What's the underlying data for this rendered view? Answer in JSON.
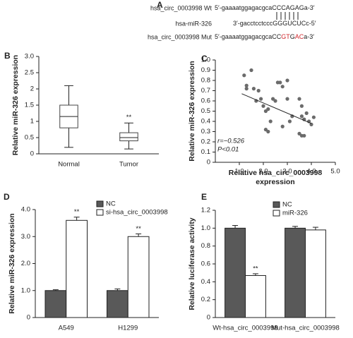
{
  "alignment": {
    "label": "A",
    "rows": [
      {
        "name": "hsa_circ_0003998 Wt",
        "segments": [
          {
            "text": "5′-gaaaatggagacgcaCCCAGAGa-3′",
            "color": "#222222"
          }
        ]
      },
      {
        "name": "hsa-miR-326",
        "segments": [
          {
            "text": "3′-gacctcctcccGGGUCUCc-5′",
            "color": "#222222"
          }
        ]
      },
      {
        "name": "hsa_circ_0003998 Mut",
        "segments": [
          {
            "text": "5′-gaaaatggagacgcaCC",
            "color": "#222222"
          },
          {
            "text": "GT",
            "color": "#d0282e"
          },
          {
            "text": "G",
            "color": "#222222"
          },
          {
            "text": "AC",
            "color": "#d0282e"
          },
          {
            "text": "a-3′",
            "color": "#222222"
          }
        ]
      }
    ]
  },
  "chart_data": [
    {
      "label": "B",
      "type": "box",
      "ylabel": "Relative miR-326 expression",
      "categories": [
        "Normal",
        "Tumor"
      ],
      "boxes": [
        {
          "min": 0.2,
          "q1": 0.8,
          "median": 1.15,
          "q3": 1.5,
          "max": 2.1
        },
        {
          "min": 0.15,
          "q1": 0.4,
          "median": 0.5,
          "q3": 0.65,
          "max": 0.95
        }
      ],
      "significance": [
        null,
        "**"
      ],
      "ylim": [
        0,
        3
      ],
      "yticks": [
        0,
        0.5,
        1,
        1.5,
        2,
        2.5,
        {
          "value": 3,
          "label": "3.0"
        }
      ]
    },
    {
      "label": "C",
      "type": "scatter",
      "ylabel": "Relative miR-326 expression",
      "xlabel": "Relative hsa_circ_0003998 expression",
      "x": [
        1.2,
        1.5,
        1.3,
        1.3,
        1.6,
        1.8,
        1.7,
        1.9,
        2.0,
        2.1,
        2.2,
        2.3,
        2.4,
        2.5,
        2.6,
        2.7,
        2.8,
        2.8,
        2.2,
        2.1,
        3.0,
        3.0,
        3.2,
        3.5,
        3.6,
        3.6,
        3.7,
        3.8,
        3.9,
        3.5,
        3.6,
        3.7,
        4.0,
        4.1,
        3.1
      ],
      "y": [
        0.85,
        0.9,
        0.75,
        0.72,
        0.72,
        0.7,
        0.6,
        0.62,
        0.55,
        0.5,
        0.52,
        0.4,
        0.62,
        0.6,
        0.78,
        0.78,
        0.74,
        0.35,
        0.3,
        0.32,
        0.8,
        0.62,
        0.45,
        0.62,
        0.55,
        0.45,
        0.42,
        0.48,
        0.4,
        0.28,
        0.26,
        0.26,
        0.37,
        0.44,
        0.4
      ],
      "color": "#6b6b6b",
      "trendline": {
        "x": [
          1.1,
          4.0
        ],
        "y": [
          0.67,
          0.38
        ]
      },
      "annotations": [
        "r=−0.526",
        "P<0.01"
      ],
      "xlim": [
        0,
        5
      ],
      "xticks": [
        {
          "value": 1,
          "label": "1.0"
        },
        {
          "value": 2,
          "label": "2.0"
        },
        {
          "value": 3,
          "label": "3.0"
        },
        {
          "value": 4,
          "label": "4.0"
        },
        {
          "value": 5,
          "label": "5.0"
        }
      ],
      "ylim": [
        0,
        1
      ],
      "yticks": [
        0,
        0.1,
        0.2,
        0.3,
        0.4,
        0.5,
        0.6,
        0.7,
        0.8,
        0.9,
        {
          "value": 1,
          "label": "1.0"
        }
      ]
    },
    {
      "label": "D",
      "type": "bar",
      "ylabel": "Relative miR-326 expression",
      "categories": [
        "A549",
        "H1299"
      ],
      "series": [
        {
          "name": "NC",
          "color": "#595959",
          "values": [
            1.0,
            1.0
          ],
          "errors": [
            0.03,
            0.06
          ],
          "significance": [
            null,
            null
          ]
        },
        {
          "name": "si-hsa_circ_0003998",
          "color": "#ffffff",
          "values": [
            3.6,
            3.0
          ],
          "errors": [
            0.12,
            0.1
          ],
          "significance": [
            "**",
            "**"
          ]
        }
      ],
      "legend": "top-right",
      "ylim": [
        0,
        4
      ],
      "yticks": [
        0,
        {
          "value": 1,
          "label": "1.0"
        },
        {
          "value": 2,
          "label": "2.0"
        },
        {
          "value": 3,
          "label": "3.0"
        },
        {
          "value": 4,
          "label": "4.0"
        }
      ]
    },
    {
      "label": "E",
      "type": "bar",
      "ylabel": "Relative luciferase activity",
      "categories": [
        "Wt-hsa_circ_0003998",
        "Mut-hsa_circ_0003998"
      ],
      "series": [
        {
          "name": "NC",
          "color": "#595959",
          "values": [
            1.0,
            1.0
          ],
          "errors": [
            0.03,
            0.02
          ],
          "significance": [
            null,
            null
          ]
        },
        {
          "name": "miR-326",
          "color": "#ffffff",
          "values": [
            0.47,
            0.98
          ],
          "errors": [
            0.02,
            0.03
          ],
          "significance": [
            "**",
            null
          ]
        }
      ],
      "legend": "top-right",
      "ylim": [
        0,
        1.2
      ],
      "yticks": [
        0,
        0.2,
        0.4,
        0.6,
        0.8,
        {
          "value": 1,
          "label": "1.0"
        },
        1.2
      ]
    }
  ]
}
